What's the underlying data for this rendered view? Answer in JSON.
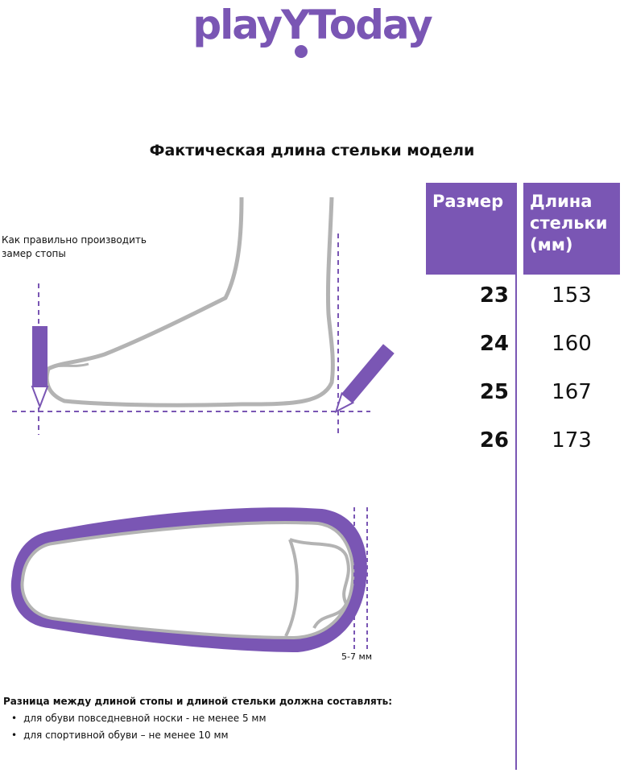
{
  "brand": {
    "logo_text": "playToday",
    "color": "#7a56b4"
  },
  "title": "Фактическая длина стельки модели",
  "table": {
    "headers": [
      "Размер",
      "Длина стельки (мм)"
    ],
    "rows": [
      {
        "size": "23",
        "length": "153"
      },
      {
        "size": "24",
        "length": "160"
      },
      {
        "size": "25",
        "length": "167"
      },
      {
        "size": "26",
        "length": "173"
      }
    ]
  },
  "illustration": {
    "instruction": "Как правильно производить замер стопы",
    "gap_label": "5-7 мм"
  },
  "note": {
    "heading": "Разница между длиной стопы и длиной стельки должна составлять:",
    "bullets": [
      "для обуви повседневной носки -  не менее 5 мм",
      "для спортивной обуви – не менее 10 мм"
    ]
  }
}
